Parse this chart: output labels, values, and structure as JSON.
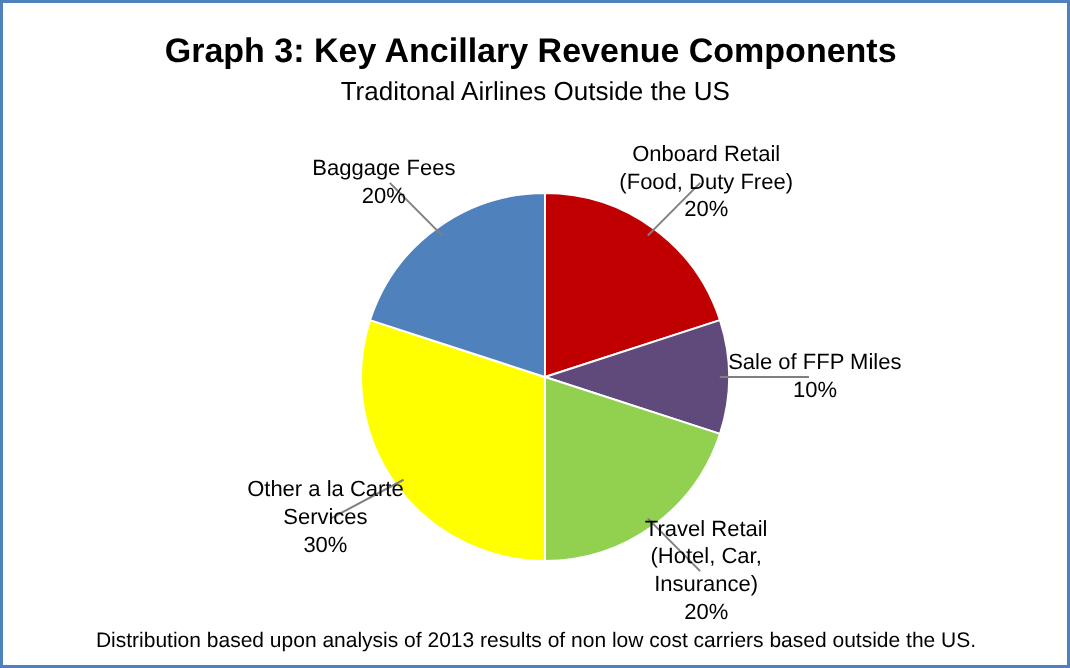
{
  "chart_data": {
    "type": "pie",
    "title": "Graph 3:  Key Ancillary Revenue Components",
    "subtitle": "Traditonal Airlines Outside the US",
    "categories": [
      "Onboard Retail\n(Food, Duty Free)",
      "Sale of FFP Miles",
      "Travel Retail\n(Hotel, Car,\nInsurance)",
      "Other a la Carte\nServices",
      "Baggage Fees"
    ],
    "values": [
      20,
      10,
      20,
      30,
      20
    ],
    "value_labels": [
      "20%",
      "10%",
      "20%",
      "30%",
      "20%"
    ],
    "colors": [
      "#c00000",
      "#604a7b",
      "#92d050",
      "#ffff00",
      "#4f81bd"
    ],
    "annotations": [
      "Distribution based upon analysis of 2013 results of non low cost carriers based outside the US."
    ]
  }
}
